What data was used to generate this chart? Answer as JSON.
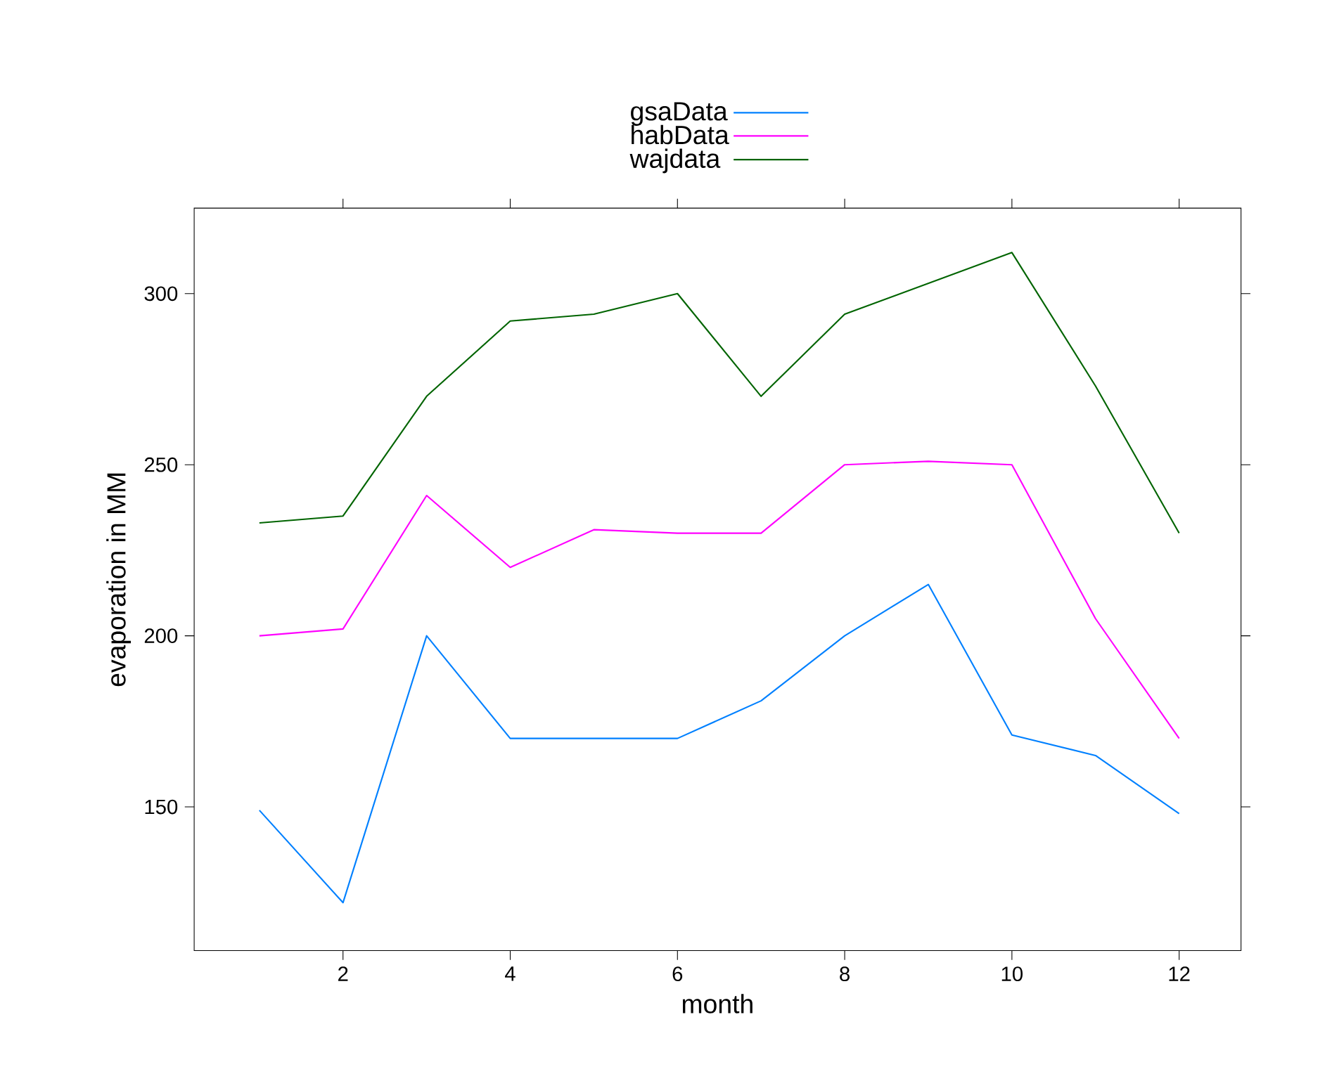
{
  "chart_data": {
    "type": "line",
    "xlabel": "month",
    "ylabel": "evaporation in MM",
    "x": [
      1,
      2,
      3,
      4,
      5,
      6,
      7,
      8,
      9,
      10,
      11,
      12
    ],
    "series": [
      {
        "name": "gsaData",
        "color": "#0080ff",
        "values": [
          149,
          122,
          200,
          170,
          170,
          170,
          181,
          200,
          215,
          171,
          165,
          148
        ]
      },
      {
        "name": "habData",
        "color": "#ff00ff",
        "values": [
          200,
          202,
          241,
          220,
          231,
          230,
          230,
          250,
          251,
          250,
          205,
          170
        ]
      },
      {
        "name": "wajdata",
        "color": "#006400",
        "values": [
          233,
          235,
          270,
          292,
          294,
          300,
          270,
          294,
          303,
          312,
          273,
          230
        ]
      }
    ],
    "xlim": [
      0.22,
      12.74
    ],
    "ylim": [
      108,
      325
    ],
    "xticks": [
      2,
      4,
      6,
      8,
      10,
      12
    ],
    "yticks": [
      150,
      200,
      250,
      300
    ],
    "legend": "top",
    "grid": false,
    "line_style": "solid"
  }
}
